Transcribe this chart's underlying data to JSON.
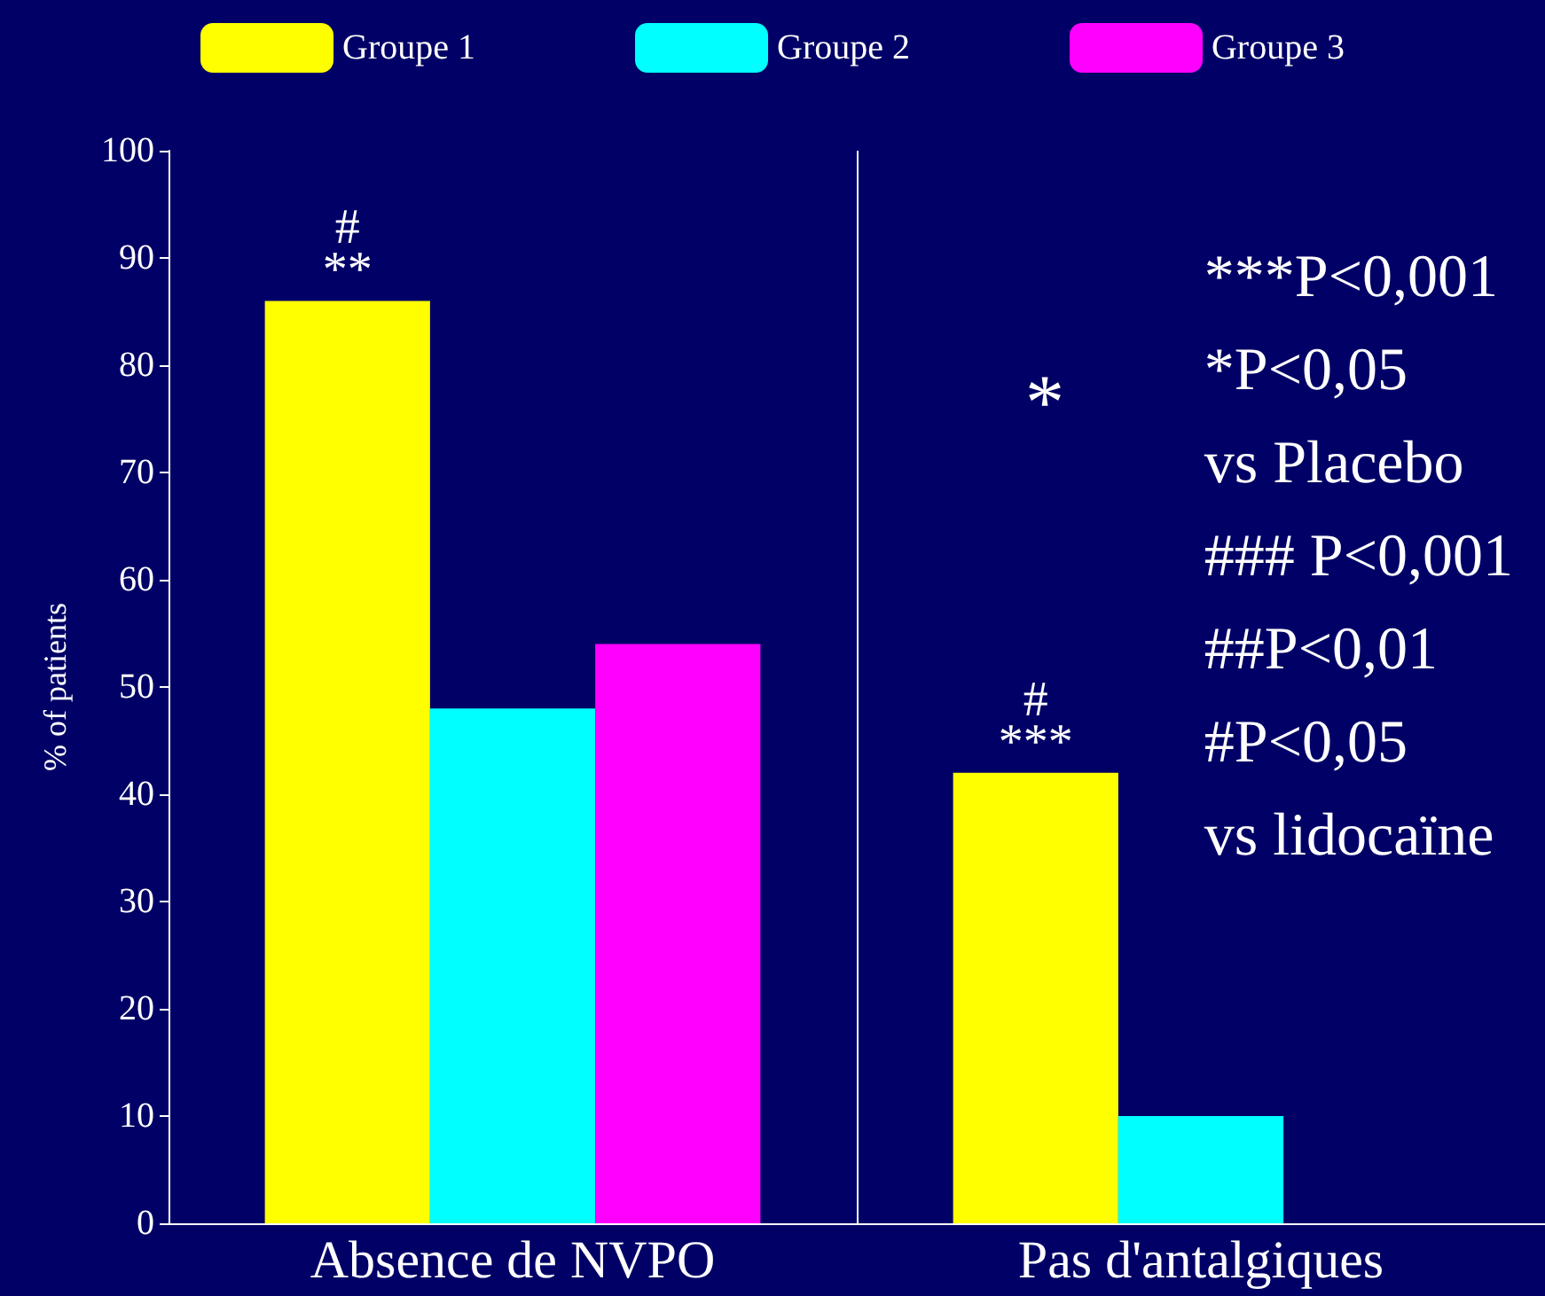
{
  "chart_data": {
    "type": "bar",
    "ylabel": "% of patients",
    "categories": [
      "Absence de NVPO",
      "Pas d'antalgiques"
    ],
    "series": [
      {
        "name": "Groupe 1",
        "color": "#ffff00",
        "values": [
          86,
          42
        ],
        "value_labels": [
          "#\n**",
          "#\n***"
        ]
      },
      {
        "name": "Groupe 2",
        "color": "#00ffff",
        "values": [
          48,
          10
        ]
      },
      {
        "name": "Groupe 3",
        "color": "#ff00ff",
        "values": [
          54,
          null
        ]
      }
    ],
    "ylim": [
      0,
      100
    ],
    "yticks": [
      0,
      10,
      20,
      30,
      40,
      50,
      60,
      70,
      80,
      90,
      100
    ],
    "grid": false,
    "legend": "top",
    "annotations": [
      "*",
      "***P<0,001\n*P<0,05\nvs Placebo\n### P<0,001\n##P<0,01\n#P<0,05\nvs lidocaïne"
    ]
  }
}
